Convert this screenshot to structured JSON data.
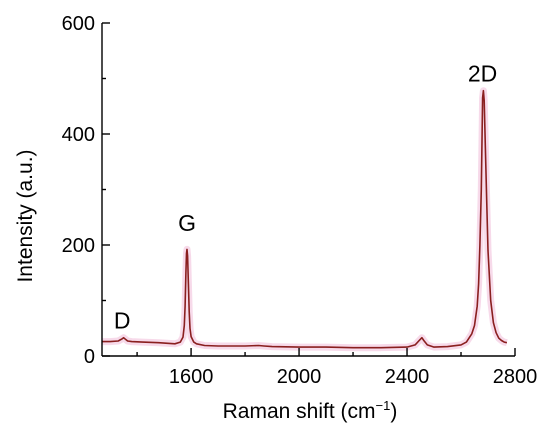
{
  "chart_data": {
    "type": "line",
    "xlabel": "Raman shift (cm",
    "xlabel_unit_sup": "−1",
    "xlabel_close": ")",
    "ylabel": "Intensity (a.u.)",
    "xlim": [
      1270,
      2800
    ],
    "ylim": [
      0,
      600
    ],
    "x_ticks": [
      1600,
      2000,
      2400,
      2800
    ],
    "y_ticks": [
      0,
      200,
      400,
      600
    ],
    "series_color": "#8a1f1f",
    "glow_color": "#f2c6de",
    "series": [
      {
        "x": [
          1270,
          1300,
          1330,
          1345,
          1350,
          1355,
          1365,
          1380,
          1420,
          1480,
          1540,
          1560,
          1570,
          1575,
          1578,
          1581,
          1583,
          1585,
          1587,
          1590,
          1593,
          1596,
          1600,
          1610,
          1620,
          1650,
          1700,
          1800,
          1850,
          1870,
          1900,
          2000,
          2100,
          2200,
          2300,
          2400,
          2430,
          2445,
          2455,
          2462,
          2475,
          2500,
          2550,
          2600,
          2620,
          2640,
          2650,
          2660,
          2665,
          2670,
          2675,
          2678,
          2680,
          2683,
          2686,
          2690,
          2695,
          2700,
          2710,
          2720,
          2730,
          2740,
          2750,
          2760,
          2770
        ],
        "values": [
          26,
          26,
          27,
          31,
          33,
          31,
          27,
          26,
          25,
          24,
          22,
          25,
          34,
          55,
          90,
          150,
          185,
          192,
          180,
          130,
          80,
          50,
          35,
          25,
          22,
          19,
          18,
          18,
          19,
          18,
          17,
          16,
          16,
          15,
          15,
          16,
          20,
          28,
          33,
          28,
          20,
          16,
          17,
          20,
          25,
          40,
          55,
          90,
          130,
          200,
          300,
          400,
          465,
          478,
          460,
          380,
          280,
          190,
          100,
          60,
          42,
          32,
          28,
          25,
          24
        ]
      }
    ],
    "annotations": [
      {
        "text": "D",
        "x": 1345,
        "y": 50
      },
      {
        "text": "G",
        "x": 1585,
        "y": 225
      },
      {
        "text": "2D",
        "x": 2680,
        "y": 495
      }
    ],
    "grid": false,
    "legend": "none"
  }
}
